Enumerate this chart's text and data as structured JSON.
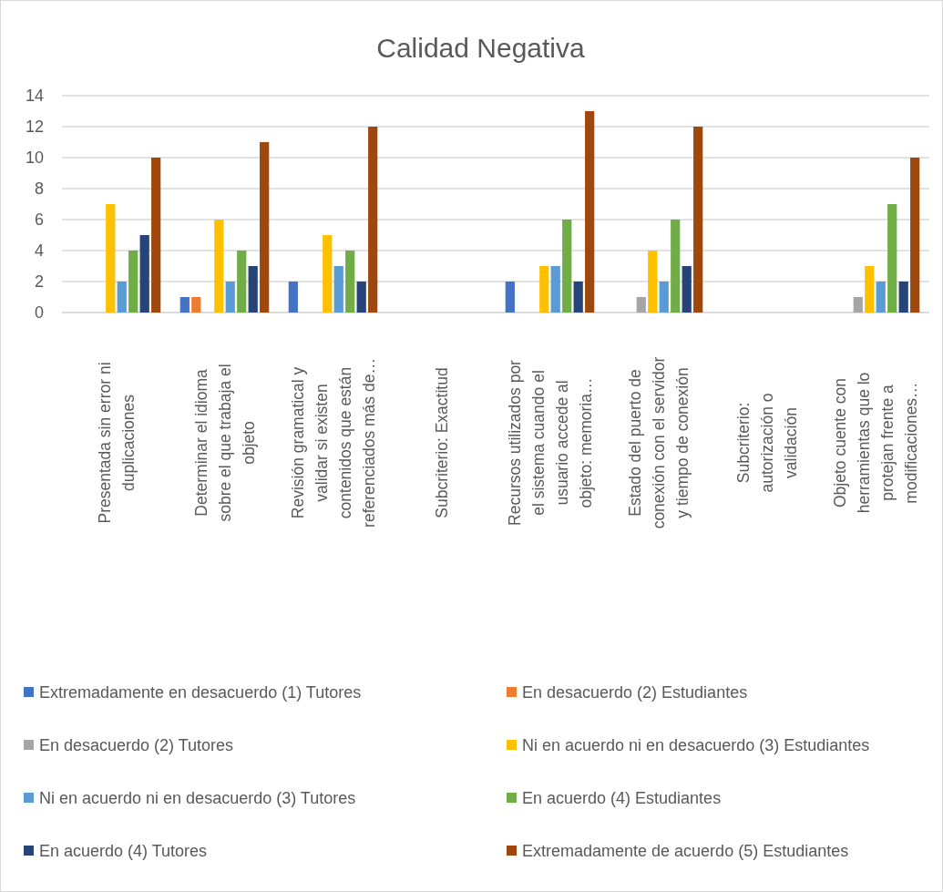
{
  "chart_data": {
    "type": "bar",
    "title": "Calidad Negativa",
    "categories": [
      "Presentada sin error ni duplicaciones",
      "Determinar el idioma sobre el que trabaja el objeto",
      "Revisión gramatical y validar si existen contenidos que están referenciados más de…",
      "Subcriterio: Exactitud",
      "Recursos utilizados por el sistema cuando el usuario accede al objeto: memoria…",
      "Estado del puerto de conexión con el servidor y tiempo de conexión",
      "Subcriterio: autorización o validación",
      "Objeto cuente con herramientas que lo protejan frente a modificaciones…"
    ],
    "series": [
      {
        "name": "Extremadamente en desacuerdo (1) Tutores",
        "color": "#4472c4",
        "values": [
          null,
          1,
          2,
          null,
          2,
          null,
          null,
          null
        ]
      },
      {
        "name": "En desacuerdo (2) Estudiantes",
        "color": "#ed7d31",
        "values": [
          null,
          1,
          null,
          null,
          null,
          null,
          null,
          null
        ]
      },
      {
        "name": "En desacuerdo (2) Tutores",
        "color": "#a5a5a5",
        "values": [
          null,
          null,
          null,
          null,
          null,
          1,
          null,
          1
        ]
      },
      {
        "name": "Ni en acuerdo ni en desacuerdo (3) Estudiantes",
        "color": "#ffc000",
        "values": [
          7,
          6,
          5,
          null,
          3,
          4,
          null,
          3
        ]
      },
      {
        "name": "Ni en acuerdo ni en desacuerdo (3) Tutores",
        "color": "#5b9bd5",
        "values": [
          2,
          2,
          3,
          null,
          3,
          2,
          null,
          2
        ]
      },
      {
        "name": "En acuerdo (4) Estudiantes",
        "color": "#70ad47",
        "values": [
          4,
          4,
          4,
          null,
          6,
          6,
          null,
          7
        ]
      },
      {
        "name": "En acuerdo (4) Tutores",
        "color": "#264478",
        "values": [
          5,
          3,
          2,
          null,
          2,
          3,
          null,
          2
        ]
      },
      {
        "name": "Extremadamente de acuerdo (5) Estudiantes",
        "color": "#9e480e",
        "values": [
          10,
          11,
          12,
          null,
          13,
          12,
          null,
          10
        ]
      }
    ],
    "ylim": [
      0,
      14
    ],
    "yticks": [
      0,
      2,
      4,
      6,
      8,
      10,
      12,
      14
    ],
    "grid": "y",
    "legend": "bottom"
  }
}
